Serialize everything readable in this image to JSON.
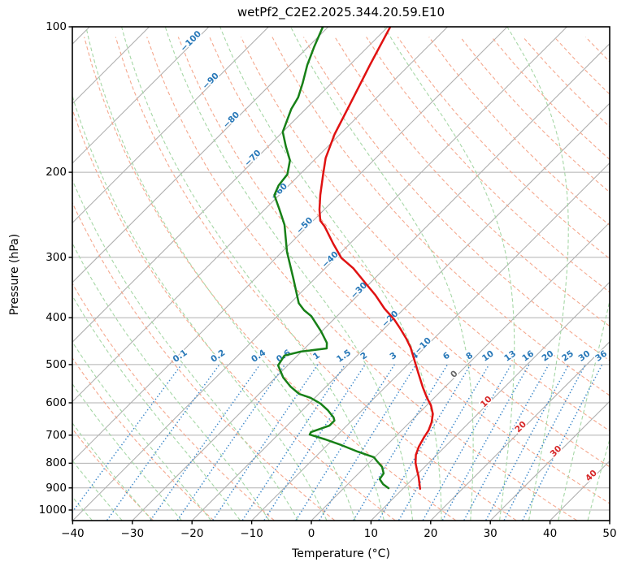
{
  "title": "wetPf2_C2E2.2025.344.20.59.E10",
  "x_axis": {
    "label": "Temperature (°C)",
    "ticks": [
      "−40",
      "−30",
      "−20",
      "−10",
      "0",
      "10",
      "20",
      "30",
      "40",
      "50"
    ],
    "values": [
      -40,
      -30,
      -20,
      -10,
      0,
      10,
      20,
      30,
      40,
      50
    ]
  },
  "y_axis": {
    "label": "Pressure (hPa)",
    "ticks": [
      "100",
      "200",
      "300",
      "400",
      "500",
      "600",
      "700",
      "800",
      "900",
      "1000"
    ],
    "values": [
      100,
      200,
      300,
      400,
      500,
      600,
      700,
      800,
      900,
      1000
    ]
  },
  "chart_data": {
    "type": "line",
    "projection": "skew-t-log-p",
    "pressure_range_hpa": [
      100,
      1050
    ],
    "temperature_axis_range_c": [
      -40,
      50
    ],
    "grid": true,
    "series": [
      {
        "name": "temperature",
        "color": "#e01212",
        "points_p_t": [
          [
            100,
            -69.6
          ],
          [
            120,
            -66.6
          ],
          [
            146,
            -63.2
          ],
          [
            167,
            -60.9
          ],
          [
            187,
            -58.4
          ],
          [
            202,
            -56.1
          ],
          [
            223,
            -53.1
          ],
          [
            239,
            -50.8
          ],
          [
            252,
            -48.8
          ],
          [
            259,
            -47.1
          ],
          [
            281,
            -42.8
          ],
          [
            301,
            -39.0
          ],
          [
            316,
            -35.3
          ],
          [
            339,
            -30.8
          ],
          [
            359,
            -27.1
          ],
          [
            383,
            -23.3
          ],
          [
            403,
            -19.9
          ],
          [
            422,
            -17.2
          ],
          [
            442,
            -14.6
          ],
          [
            461,
            -12.4
          ],
          [
            489,
            -9.7
          ],
          [
            522,
            -6.7
          ],
          [
            557,
            -3.7
          ],
          [
            586,
            -1.2
          ],
          [
            607,
            0.7
          ],
          [
            633,
            2.5
          ],
          [
            659,
            3.7
          ],
          [
            684,
            4.5
          ],
          [
            706,
            4.9
          ],
          [
            739,
            5.6
          ],
          [
            769,
            6.5
          ],
          [
            799,
            7.8
          ],
          [
            824,
            9.1
          ],
          [
            853,
            10.6
          ],
          [
            904,
            12.9
          ]
        ]
      },
      {
        "name": "dewpoint",
        "color": "#178017",
        "points_p_t": [
          [
            100,
            -80.9
          ],
          [
            110,
            -79.0
          ],
          [
            120,
            -77.1
          ],
          [
            131,
            -74.8
          ],
          [
            140,
            -73.2
          ],
          [
            148,
            -72.4
          ],
          [
            165,
            -70.0
          ],
          [
            177,
            -67.0
          ],
          [
            189,
            -64.0
          ],
          [
            202,
            -62.1
          ],
          [
            213,
            -61.7
          ],
          [
            223,
            -60.8
          ],
          [
            239,
            -57.5
          ],
          [
            257,
            -54.1
          ],
          [
            292,
            -49.2
          ],
          [
            332,
            -43.6
          ],
          [
            373,
            -38.6
          ],
          [
            386,
            -36.5
          ],
          [
            397,
            -34.3
          ],
          [
            427,
            -30.1
          ],
          [
            451,
            -27.2
          ],
          [
            463,
            -26.3
          ],
          [
            470,
            -30.1
          ],
          [
            479,
            -32.2
          ],
          [
            502,
            -31.6
          ],
          [
            532,
            -28.7
          ],
          [
            555,
            -26.0
          ],
          [
            575,
            -23.3
          ],
          [
            586,
            -20.7
          ],
          [
            602,
            -18.1
          ],
          [
            621,
            -15.8
          ],
          [
            643,
            -13.6
          ],
          [
            653,
            -12.9
          ],
          [
            669,
            -12.9
          ],
          [
            690,
            -14.9
          ],
          [
            698,
            -14.7
          ],
          [
            714,
            -11.3
          ],
          [
            734,
            -7.6
          ],
          [
            757,
            -3.8
          ],
          [
            778,
            -0.1
          ],
          [
            793,
            1.1
          ],
          [
            815,
            2.9
          ],
          [
            840,
            4.2
          ],
          [
            863,
            4.5
          ],
          [
            884,
            5.9
          ],
          [
            901,
            7.5
          ]
        ]
      }
    ],
    "isotherms": {
      "color": "#b0b0b0",
      "step_c": 10,
      "range_c": [
        -130,
        50
      ],
      "neg_label_color": "#2878b8",
      "zero_label_color": "#666666",
      "pos_label_color": "#d62728",
      "labels": [
        {
          "text": "−100",
          "t": -100,
          "y": 53
        },
        {
          "text": "−90",
          "t": -90,
          "y": 102
        },
        {
          "text": "−80",
          "t": -80,
          "y": 150
        },
        {
          "text": "−70",
          "t": -70,
          "y": 197
        },
        {
          "text": "−60",
          "t": -60,
          "y": 238
        },
        {
          "text": "−50",
          "t": -50,
          "y": 280
        },
        {
          "text": "−40",
          "t": -40,
          "y": 322
        },
        {
          "text": "−30",
          "t": -30,
          "y": 360
        },
        {
          "text": "−20",
          "t": -20,
          "y": 395
        },
        {
          "text": "−10",
          "t": -10,
          "y": 428
        },
        {
          "text": "0",
          "t": 0,
          "y": 463
        },
        {
          "text": "10",
          "t": 10,
          "y": 497
        },
        {
          "text": "20",
          "t": 20,
          "y": 528
        },
        {
          "text": "30",
          "t": 30,
          "y": 558
        },
        {
          "text": "40",
          "t": 40,
          "y": 588
        }
      ]
    },
    "pressure_gridlines_hpa": [
      100,
      200,
      300,
      400,
      500,
      600,
      700,
      800,
      900,
      1000
    ],
    "dry_adiabats": {
      "color": "#f5a88e",
      "theta_c": [
        -30,
        -20,
        -10,
        0,
        10,
        20,
        30,
        40,
        50,
        60,
        70,
        80,
        90,
        100,
        110,
        120,
        130,
        140,
        150,
        160,
        170,
        180,
        190,
        200
      ]
    },
    "moist_adiabats": {
      "color": "#a6d7a6",
      "base_temps_c": [
        -40,
        -35,
        -30,
        -25,
        -20,
        -15,
        -10,
        -5,
        0,
        5,
        10,
        15,
        20,
        25,
        30,
        35,
        40,
        45
      ]
    },
    "mixing_ratio": {
      "line_color": "#3c87c9",
      "label_color": "#2878b8",
      "top_pressure_hpa": 500,
      "values_g_kg": [
        0.1,
        0.2,
        0.4,
        0.6,
        1,
        1.5,
        2,
        3,
        4,
        6,
        8,
        10,
        13,
        16,
        20,
        25,
        30,
        36
      ],
      "labels": [
        "0.1",
        "0.2",
        "0.4",
        "0.6",
        "1",
        "1.5",
        "2",
        "3",
        "4",
        "6",
        "8",
        "10",
        "13",
        "16",
        "20",
        "25",
        "30",
        "36"
      ]
    }
  }
}
